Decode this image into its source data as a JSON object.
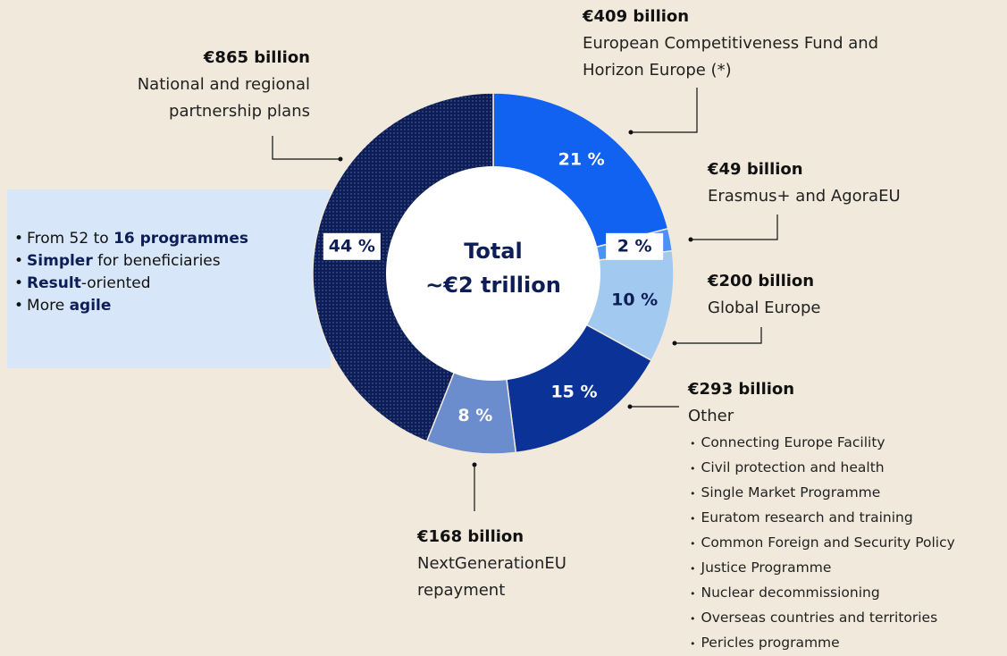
{
  "chart_data": {
    "type": "donut",
    "center_label": [
      "Total",
      "~€2 trillion"
    ],
    "amounts": [
      "€409 billion",
      "€49 billion",
      "€200 billion",
      "€293 billion",
      "€168 billion",
      "€865 billion"
    ],
    "categories": [
      "European Competitiveness Fund and Horizon Europe (*)",
      "Erasmus+ and AgoraEU",
      "Global Europe",
      "Other",
      "NextGenerationEU repayment",
      "National and regional partnership plans"
    ],
    "values": [
      21,
      2,
      10,
      15,
      8,
      44
    ],
    "value_labels": [
      "21 %",
      "2 %",
      "10 %",
      "15 %",
      "8 %",
      "44 %"
    ],
    "colors": [
      "#1262f2",
      "#4b91f6",
      "#a2c9ef",
      "#0b3397",
      "#6b8dcd",
      "#0d1d56"
    ],
    "textures": [
      "solid",
      "solid",
      "solid",
      "solid",
      "solid",
      "dotted"
    ],
    "other_items": [
      "Connecting Europe Facility",
      "Civil protection and health",
      "Single Market Programme",
      "Euratom research and training",
      "Common Foreign and Security Policy",
      "Justice Programme",
      "Nuclear decommissioning",
      "Overseas countries and territories",
      "Pericles programme"
    ],
    "highlights": [
      [
        {
          "text": "From 52 to "
        },
        {
          "text": "16 programmes",
          "bold": true
        }
      ],
      [
        {
          "text": "Simpler",
          "bold": true
        },
        {
          "text": " for beneficiaries"
        }
      ],
      [
        {
          "text": "Result",
          "bold": true
        },
        {
          "text": "-oriented"
        }
      ],
      [
        {
          "text": "More "
        },
        {
          "text": "agile",
          "bold": true
        }
      ]
    ]
  }
}
